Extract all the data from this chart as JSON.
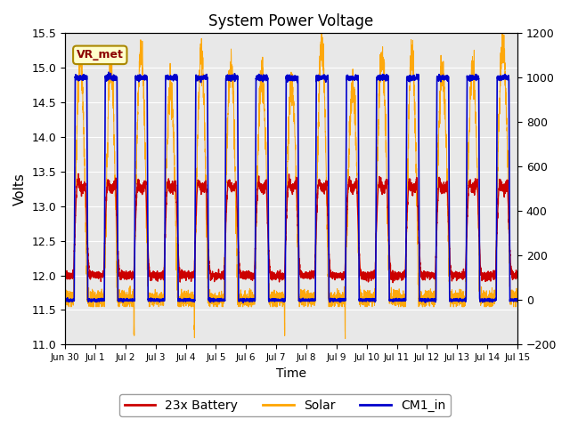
{
  "title": "System Power Voltage",
  "xlabel": "Time",
  "ylabel_left": "Volts",
  "ylim_left": [
    11.0,
    15.5
  ],
  "ylim_right": [
    -200,
    1200
  ],
  "yticks_left": [
    11.0,
    11.5,
    12.0,
    12.5,
    13.0,
    13.5,
    14.0,
    14.5,
    15.0,
    15.5
  ],
  "yticks_right": [
    -200,
    0,
    200,
    400,
    600,
    800,
    1000,
    1200
  ],
  "xtick_labels": [
    "Jun 30",
    "Jul 1",
    "Jul 2",
    "Jul 3",
    "Jul 4",
    "Jul 5",
    "Jul 6",
    "Jul 7",
    "Jul 8",
    "Jul 9",
    "Jul 10",
    "Jul 11",
    "Jul 12",
    "Jul 13",
    "Jul 14",
    "Jul 15"
  ],
  "annotation_label": "VR_met",
  "plot_bg_color": "#e8e8e8",
  "battery_color": "#cc0000",
  "solar_color": "#ffa500",
  "cm1_color": "#0000cc",
  "legend_labels": [
    "23x Battery",
    "Solar",
    "CM1_in"
  ],
  "grid_color": "white",
  "num_days": 15,
  "pts_per_day": 288
}
